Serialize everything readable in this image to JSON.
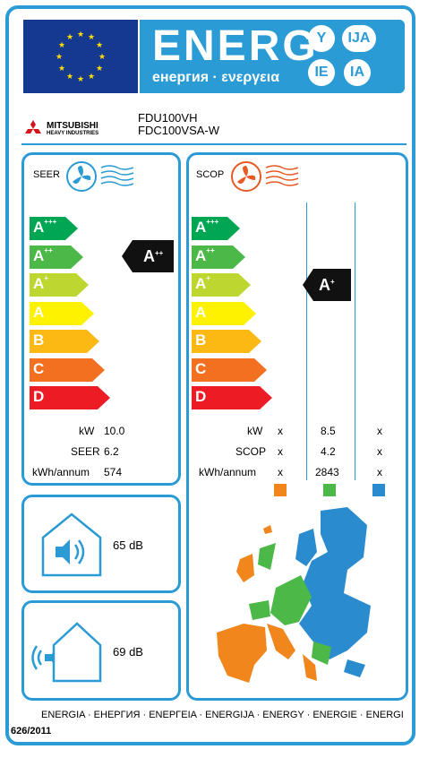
{
  "header": {
    "title": "ENERG",
    "subtitle": "енергия · ενεργεια",
    "bubbles": [
      "Y",
      "IJA",
      "IE",
      "IA"
    ]
  },
  "brand": {
    "line1": "MITSUBISHI",
    "line2": "HEAVY INDUSTRIES"
  },
  "model": {
    "indoor": "FDU100VH",
    "outdoor": "FDC100VSA-W"
  },
  "seer": {
    "title": "SEER",
    "rating": {
      "base": "A",
      "sup": "++"
    },
    "values": [
      {
        "label": "kW",
        "value": "10.0"
      },
      {
        "label": "SEER",
        "value": "6.2"
      },
      {
        "label": "kWh/annum",
        "value": "574"
      }
    ]
  },
  "scop": {
    "title": "SCOP",
    "rating": {
      "base": "A",
      "sup": "+"
    },
    "rows": [
      {
        "label": "kW",
        "cold": "x",
        "avg": "8.5",
        "warm": "x"
      },
      {
        "label": "SCOP",
        "cold": "x",
        "avg": "4.2",
        "warm": "x"
      },
      {
        "label": "kWh/annum",
        "cold": "x",
        "avg": "2843",
        "warm": "x"
      }
    ],
    "zone_colors": [
      "#f0861c",
      "#4cb848",
      "#2a8ccf"
    ]
  },
  "classes": [
    {
      "base": "A",
      "sup": "+++",
      "color": "#00a651"
    },
    {
      "base": "A",
      "sup": "++",
      "color": "#4cb848"
    },
    {
      "base": "A",
      "sup": "+",
      "color": "#bed630"
    },
    {
      "base": "A",
      "sup": "",
      "color": "#fff200"
    },
    {
      "base": "B",
      "sup": "",
      "color": "#fdb913"
    },
    {
      "base": "C",
      "sup": "",
      "color": "#f37021"
    },
    {
      "base": "D",
      "sup": "",
      "color": "#ed1c24"
    }
  ],
  "noise": {
    "indoor": "65 dB",
    "outdoor": "69 dB"
  },
  "footer": {
    "languages": "ENERGIA · ЕНЕРГИЯ · ΕΝΕΡΓΕΙΑ · ENERGIJA · ENERGY · ENERGIE · ENERGI",
    "regulation": "626/2011"
  },
  "icons": [
    "eu-flag-icon",
    "fan-icon",
    "heat-icon",
    "speaker-icon",
    "house-icon",
    "sound-wave-icon",
    "europe-map-icon"
  ]
}
